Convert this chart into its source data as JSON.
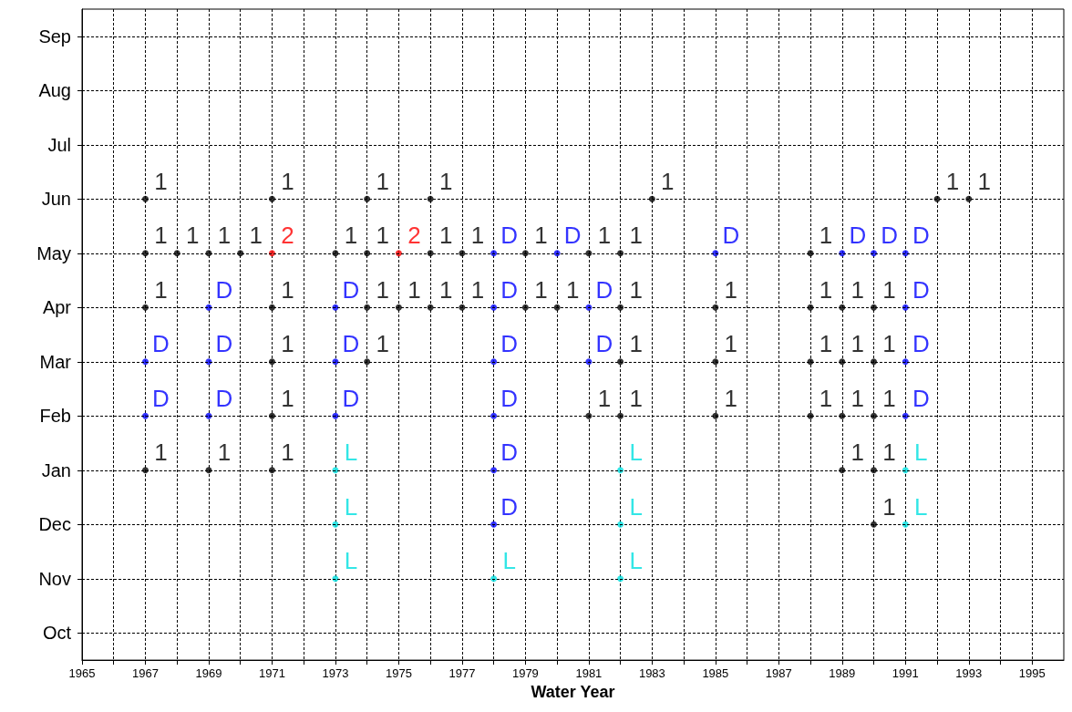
{
  "chart_data": {
    "type": "scatter",
    "orientation": "horizontal",
    "xlabel": "Water Year",
    "categories": [
      "Sep",
      "Aug",
      "Jul",
      "Jun",
      "May",
      "Apr",
      "Mar",
      "Feb",
      "Jan",
      "Dec",
      "Nov",
      "Oct"
    ],
    "xlim": [
      1965,
      1996
    ],
    "xticks": [
      1965,
      {
        "value": 1966,
        "label": null
      },
      1967,
      {
        "value": 1968,
        "label": null
      },
      1969,
      {
        "value": 1970,
        "label": null
      },
      1971,
      {
        "value": 1972,
        "label": null
      },
      1973,
      {
        "value": 1974,
        "label": null
      },
      1975,
      {
        "value": 1976,
        "label": null
      },
      1977,
      {
        "value": 1978,
        "label": null
      },
      1979,
      {
        "value": 1980,
        "label": null
      },
      1981,
      {
        "value": 1982,
        "label": null
      },
      1983,
      {
        "value": 1984,
        "label": null
      },
      1985,
      {
        "value": 1986,
        "label": null
      },
      1987,
      {
        "value": 1988,
        "label": null
      },
      1989,
      {
        "value": 1990,
        "label": null
      },
      1991,
      {
        "value": 1992,
        "label": null
      },
      1993,
      {
        "value": 1994,
        "label": null
      },
      1995
    ],
    "grid": true,
    "series": [
      {
        "name": "1",
        "color": "#000000",
        "x": [
          "Jun",
          "Jun",
          "Jun",
          "Jun",
          "Jun",
          "Jun",
          "Jun",
          "May",
          "May",
          "May",
          "May",
          "May",
          "May",
          "May",
          "May",
          "May",
          "May",
          "May",
          "May",
          "Apr",
          "Apr",
          "Apr",
          "Apr",
          "Apr",
          "Apr",
          "Apr",
          "Apr",
          "Apr",
          "Apr",
          "Apr",
          "Apr",
          "Apr",
          "Mar",
          "Mar",
          "Mar",
          "Mar",
          "Mar",
          "Mar",
          "Mar",
          "Feb",
          "Feb",
          "Feb",
          "Feb",
          "Feb",
          "Feb",
          "Feb",
          "Jan",
          "Jan",
          "Jan",
          "Jan",
          "Jan",
          "Dec"
        ],
        "values": [
          1967,
          1971,
          1974,
          1976,
          1983,
          1992,
          1993,
          1967,
          1968,
          1969,
          1970,
          1973,
          1974,
          1976,
          1977,
          1979,
          1981,
          1982,
          1988,
          1967,
          1971,
          1974,
          1975,
          1976,
          1977,
          1979,
          1980,
          1982,
          1985,
          1988,
          1989,
          1990,
          1971,
          1974,
          1982,
          1985,
          1988,
          1989,
          1990,
          1971,
          1981,
          1982,
          1985,
          1988,
          1989,
          1990,
          1967,
          1969,
          1971,
          1989,
          1990,
          1990
        ]
      },
      {
        "name": "2",
        "color": "#ff0000",
        "x": [
          "May",
          "May"
        ],
        "values": [
          1971,
          1975
        ]
      },
      {
        "name": "D",
        "color": "#0000ff",
        "x": [
          "May",
          "May",
          "May",
          "May",
          "May",
          "May",
          "Apr",
          "Apr",
          "Apr",
          "Apr",
          "Apr",
          "Mar",
          "Mar",
          "Mar",
          "Mar",
          "Mar",
          "Mar",
          "Feb",
          "Feb",
          "Feb",
          "Feb",
          "Feb",
          "Jan",
          "Dec"
        ],
        "values": [
          1978,
          1980,
          1985,
          1989,
          1990,
          1991,
          1969,
          1973,
          1978,
          1981,
          1991,
          1967,
          1969,
          1973,
          1978,
          1981,
          1991,
          1967,
          1969,
          1973,
          1978,
          1991,
          1978,
          1978
        ]
      },
      {
        "name": "L",
        "color": "#00e0e0",
        "x": [
          "Jan",
          "Jan",
          "Jan",
          "Dec",
          "Dec",
          "Dec",
          "Nov",
          "Nov",
          "Nov"
        ],
        "values": [
          1973,
          1982,
          1991,
          1973,
          1982,
          1991,
          1973,
          1978,
          1982
        ]
      }
    ]
  }
}
